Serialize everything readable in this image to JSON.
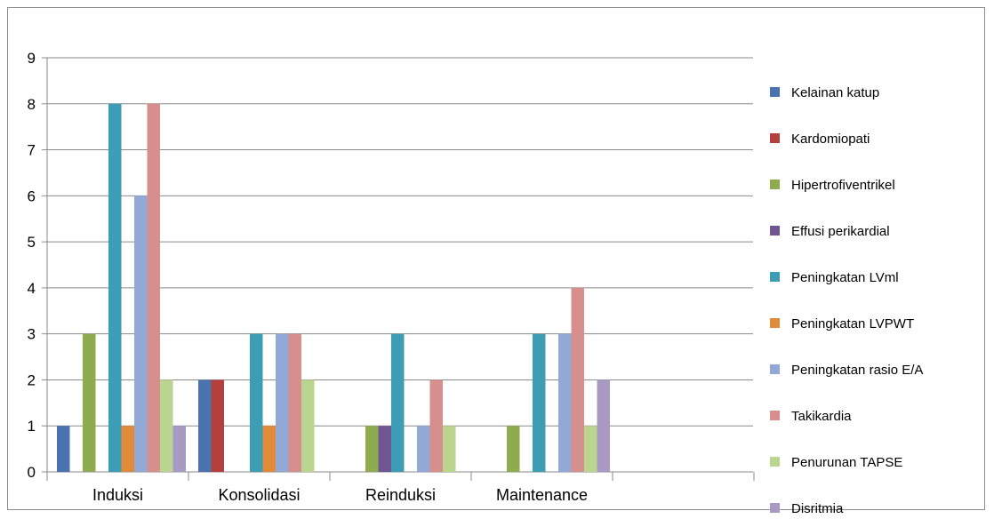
{
  "chart_data": {
    "type": "bar",
    "title": "",
    "xlabel": "",
    "ylabel": "",
    "ylim": [
      0,
      9
    ],
    "yticks": [
      0,
      1,
      2,
      3,
      4,
      5,
      6,
      7,
      8,
      9
    ],
    "grid": true,
    "legend_position": "right",
    "categories": [
      "Induksi",
      "Konsolidasi",
      "Reinduksi",
      "Maintenance"
    ],
    "series": [
      {
        "name": "Kelainan katup",
        "color": "#4a72ae",
        "values": [
          1,
          2,
          0,
          0
        ]
      },
      {
        "name": "Kardomiopati",
        "color": "#b3403d",
        "values": [
          0,
          2,
          0,
          0
        ]
      },
      {
        "name": "Hipertrofiventrikel",
        "color": "#8eac4e",
        "values": [
          3,
          0,
          1,
          1
        ]
      },
      {
        "name": "Effusi perikardial",
        "color": "#6f5591",
        "values": [
          0,
          0,
          1,
          0
        ]
      },
      {
        "name": "Peningkatan LVml",
        "color": "#3d9db5",
        "values": [
          8,
          3,
          3,
          3
        ]
      },
      {
        "name": "Peningkatan LVPWT",
        "color": "#e08b3a",
        "values": [
          1,
          1,
          0,
          0
        ]
      },
      {
        "name": "Peningkatan rasio E/A",
        "color": "#92a9d6",
        "values": [
          6,
          3,
          1,
          3
        ]
      },
      {
        "name": "Takikardia",
        "color": "#d68f8c",
        "values": [
          8,
          3,
          2,
          4
        ]
      },
      {
        "name": "Penurunan TAPSE",
        "color": "#b9d58f",
        "values": [
          2,
          2,
          1,
          1
        ]
      },
      {
        "name": "Disritmia",
        "color": "#a99ac4",
        "values": [
          1,
          0,
          0,
          2
        ]
      }
    ]
  }
}
